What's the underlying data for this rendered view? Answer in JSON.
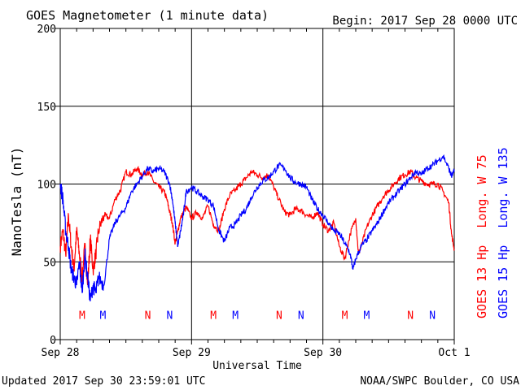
{
  "header": {
    "title": "GOES Magnetometer (1 minute data)",
    "begin": "Begin:  2017 Sep 28 0000 UTC"
  },
  "footer": {
    "updated": "Updated 2017 Sep 30 23:59:01 UTC",
    "credit": "NOAA/SWPC Boulder, CO USA"
  },
  "chart_data": {
    "type": "line",
    "title": "GOES Magnetometer (1 minute data)",
    "xlabel": "Universal Time",
    "ylabel": "NanoTesla (nT)",
    "xlim": [
      0,
      72
    ],
    "ylim": [
      0,
      200
    ],
    "yticks": [
      0,
      50,
      100,
      150,
      200
    ],
    "xticks": [
      {
        "value": 0,
        "label": "Sep 28"
      },
      {
        "value": 24,
        "label": "Sep 29"
      },
      {
        "value": 48,
        "label": "Sep 30"
      },
      {
        "value": 72,
        "label": "Oct 1"
      }
    ],
    "grid": true,
    "legend_position": "right-vertical",
    "series": [
      {
        "name": "GOES 13 Hp",
        "longitude": "Long. W 75",
        "color": "#ff0000",
        "x": [
          0,
          0.5,
          1,
          1.5,
          2,
          2.5,
          3,
          3.5,
          4,
          4.5,
          5,
          5.5,
          6,
          6.5,
          7,
          8,
          9,
          10,
          11,
          12,
          13,
          14,
          15,
          16,
          17,
          18,
          19,
          19.5,
          20,
          20.5,
          21,
          21.5,
          22,
          23,
          24,
          25,
          26,
          27,
          28,
          29,
          30,
          31,
          32,
          33,
          34,
          35,
          36,
          37,
          38,
          39,
          40,
          41,
          42,
          43,
          44,
          45,
          46,
          47,
          48,
          49,
          50,
          51,
          52,
          53,
          54,
          54.5,
          55,
          56,
          57,
          58,
          59,
          60,
          61,
          62,
          63,
          64,
          65,
          66,
          67,
          68,
          69,
          70,
          71,
          71.5,
          72
        ],
        "y": [
          60,
          70,
          55,
          80,
          60,
          45,
          70,
          55,
          40,
          60,
          35,
          65,
          45,
          55,
          70,
          80,
          78,
          90,
          96,
          108,
          106,
          110,
          106,
          108,
          102,
          98,
          95,
          90,
          82,
          75,
          62,
          70,
          78,
          85,
          78,
          82,
          78,
          86,
          74,
          70,
          84,
          93,
          96,
          100,
          104,
          108,
          106,
          104,
          106,
          98,
          90,
          82,
          80,
          84,
          83,
          80,
          78,
          82,
          74,
          70,
          75,
          60,
          52,
          68,
          78,
          55,
          60,
          72,
          80,
          86,
          92,
          96,
          100,
          104,
          106,
          108,
          104,
          102,
          100,
          100,
          100,
          95,
          88,
          68,
          58
        ]
      },
      {
        "name": "GOES 15 Hp",
        "longitude": "Long. W 135",
        "color": "#0000ff",
        "x": [
          0,
          0.5,
          1,
          1.5,
          2,
          2.5,
          3,
          3.5,
          4,
          4.5,
          5,
          5.5,
          6,
          6.5,
          7,
          8,
          9,
          10,
          11,
          12,
          13,
          14,
          15,
          16,
          17,
          18,
          19,
          20,
          20.5,
          21,
          21.5,
          22,
          22.5,
          23,
          24,
          25,
          26,
          27,
          28,
          29,
          30,
          31,
          32,
          33,
          34,
          35,
          36,
          37,
          38,
          39,
          40,
          41,
          42,
          43,
          44,
          45,
          46,
          47,
          48,
          49,
          50,
          51,
          52,
          53,
          53.5,
          54,
          55,
          56,
          57,
          58,
          59,
          60,
          61,
          62,
          63,
          64,
          65,
          66,
          67,
          68,
          69,
          70,
          71,
          71.5,
          72
        ],
        "y": [
          100,
          90,
          70,
          60,
          45,
          40,
          35,
          50,
          30,
          55,
          40,
          25,
          35,
          30,
          40,
          35,
          65,
          75,
          80,
          85,
          95,
          100,
          105,
          110,
          108,
          110,
          108,
          100,
          90,
          75,
          60,
          70,
          80,
          95,
          98,
          95,
          92,
          90,
          86,
          70,
          63,
          72,
          74,
          80,
          84,
          92,
          98,
          102,
          104,
          108,
          112,
          110,
          104,
          101,
          100,
          98,
          90,
          84,
          80,
          75,
          70,
          68,
          62,
          55,
          45,
          52,
          60,
          64,
          70,
          75,
          82,
          88,
          92,
          96,
          100,
          104,
          108,
          106,
          110,
          112,
          115,
          118,
          110,
          105,
          108
        ]
      }
    ],
    "annotations": [
      {
        "text": "M",
        "x": 4.0,
        "y": 16,
        "color": "#ff0000"
      },
      {
        "text": "M",
        "x": 7.8,
        "y": 16,
        "color": "#0000ff"
      },
      {
        "text": "N",
        "x": 16.0,
        "y": 16,
        "color": "#ff0000"
      },
      {
        "text": "N",
        "x": 20.0,
        "y": 16,
        "color": "#0000ff"
      },
      {
        "text": "M",
        "x": 28.0,
        "y": 16,
        "color": "#ff0000"
      },
      {
        "text": "M",
        "x": 32.0,
        "y": 16,
        "color": "#0000ff"
      },
      {
        "text": "N",
        "x": 40.0,
        "y": 16,
        "color": "#ff0000"
      },
      {
        "text": "N",
        "x": 44.0,
        "y": 16,
        "color": "#0000ff"
      },
      {
        "text": "M",
        "x": 52.0,
        "y": 16,
        "color": "#ff0000"
      },
      {
        "text": "M",
        "x": 56.0,
        "y": 16,
        "color": "#0000ff"
      },
      {
        "text": "N",
        "x": 64.0,
        "y": 16,
        "color": "#ff0000"
      },
      {
        "text": "N",
        "x": 68.0,
        "y": 16,
        "color": "#0000ff"
      }
    ]
  }
}
